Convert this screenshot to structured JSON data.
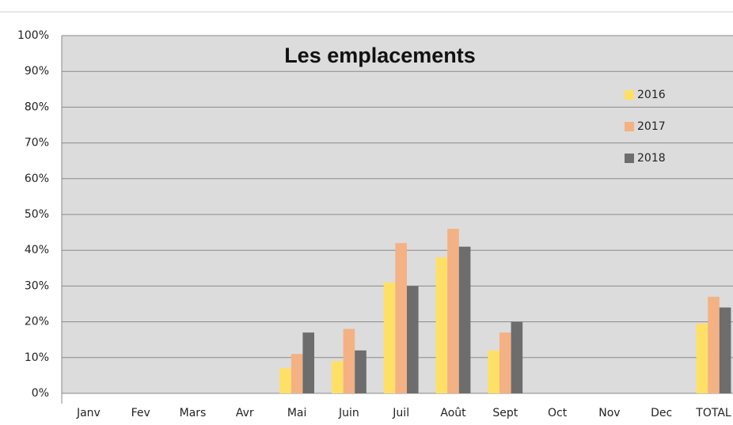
{
  "chart_data": {
    "type": "bar",
    "title": "Les emplacements",
    "categories": [
      "Janv",
      "Fev",
      "Mars",
      "Avr",
      "Mai",
      "Juin",
      "Juil",
      "Août",
      "Sept",
      "Oct",
      "Nov",
      "Dec",
      "TOTAL"
    ],
    "series": [
      {
        "name": "2016",
        "color": "#ffe066",
        "values": [
          null,
          null,
          null,
          null,
          7,
          9,
          31,
          38,
          12,
          null,
          null,
          null,
          19.5
        ]
      },
      {
        "name": "2017",
        "color": "#f4b183",
        "values": [
          null,
          null,
          null,
          null,
          11,
          18,
          42,
          46,
          17,
          null,
          null,
          null,
          27
        ]
      },
      {
        "name": "2018",
        "color": "#6d6d6d",
        "values": [
          null,
          null,
          null,
          null,
          17,
          12,
          30,
          41,
          20,
          null,
          null,
          null,
          24
        ]
      }
    ],
    "ylim": [
      0,
      100
    ],
    "yticks": [
      {
        "value": 0,
        "label": "0%"
      },
      {
        "value": 10,
        "label": "10%"
      },
      {
        "value": 20,
        "label": "20%"
      },
      {
        "value": 30,
        "label": "30%"
      },
      {
        "value": 40,
        "label": "40%"
      },
      {
        "value": 50,
        "label": "50%"
      },
      {
        "value": 60,
        "label": "60%"
      },
      {
        "value": 70,
        "label": "70%"
      },
      {
        "value": 80,
        "label": "80%"
      },
      {
        "value": 90,
        "label": "90%"
      },
      {
        "value": 100,
        "label": "100%"
      }
    ],
    "grid": true,
    "legend": "right"
  }
}
